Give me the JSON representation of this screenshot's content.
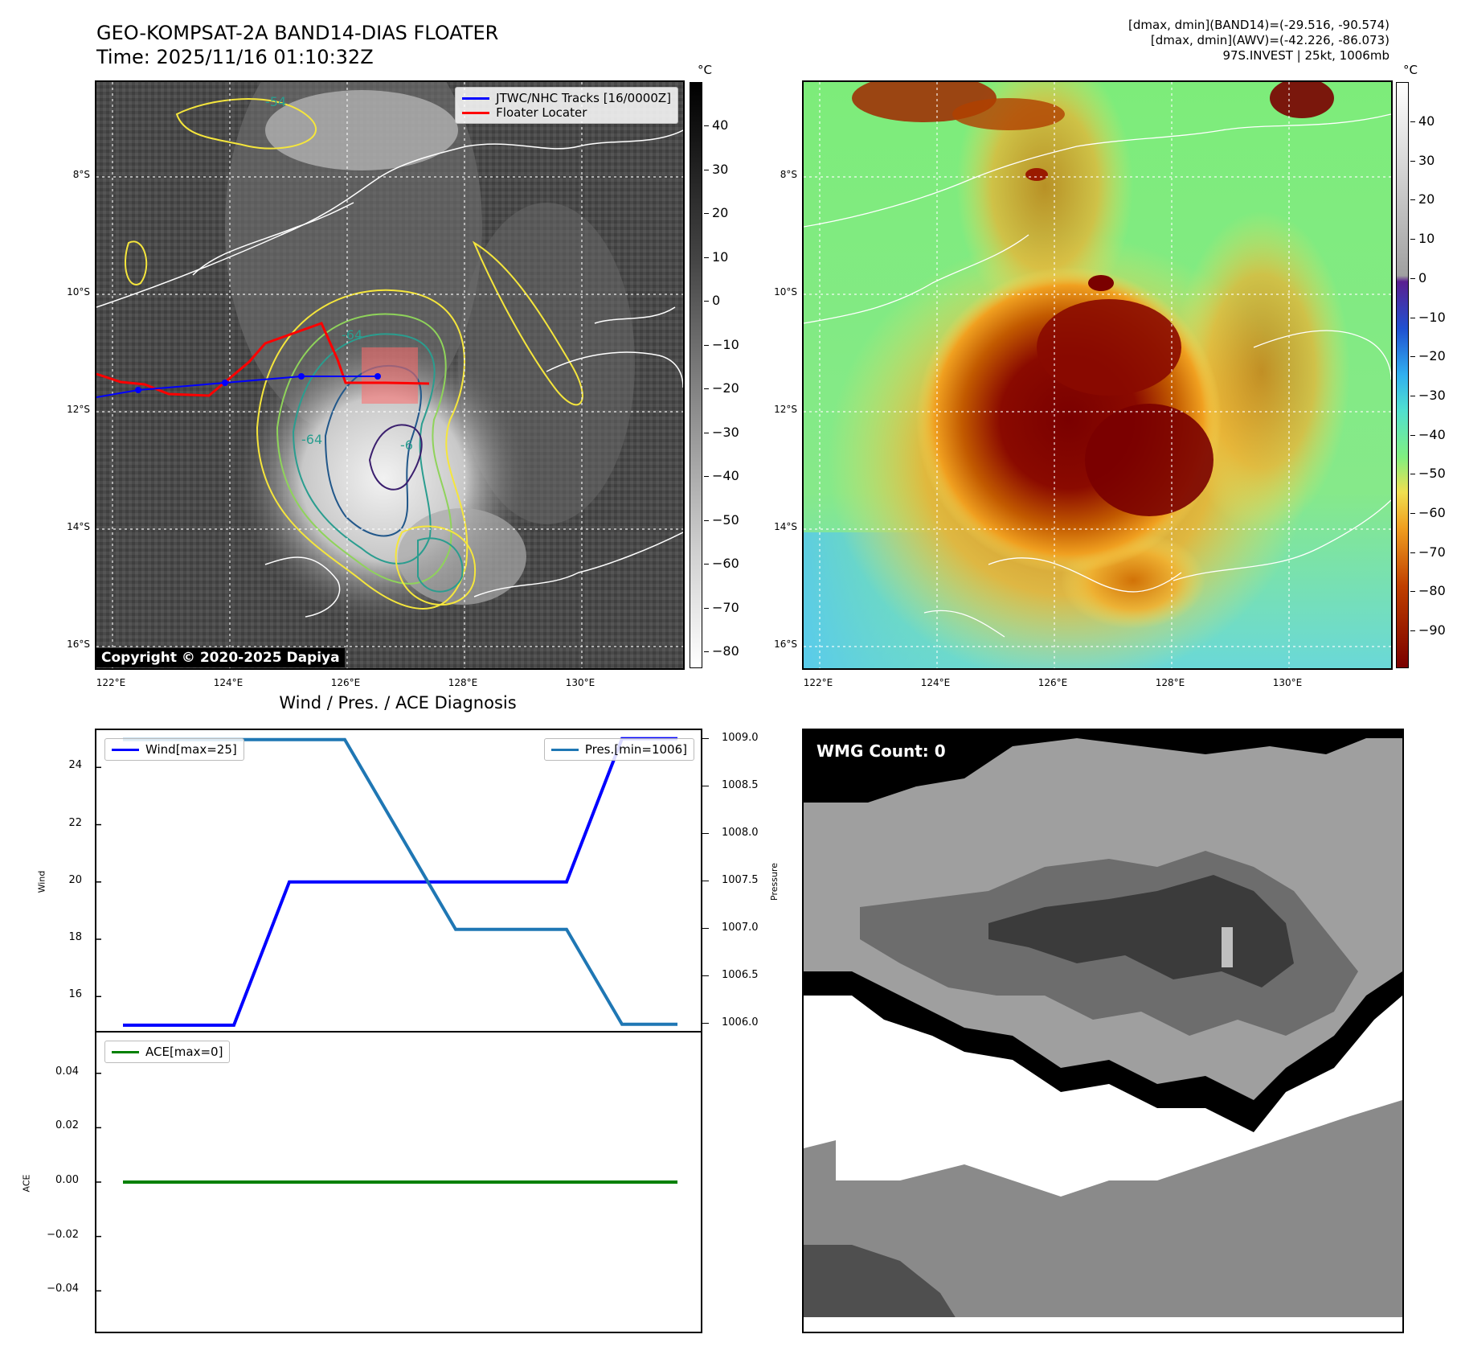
{
  "header": {
    "title_line1": "GEO-KOMPSAT-2A BAND14-DIAS FLOATER",
    "title_line2": "Time: 2025/11/16 01:10:32Z",
    "info_line1": "[dmax, dmin](BAND14)=(-29.516, -90.574)",
    "info_line2": "[dmax, dmin](AWV)=(-42.226, -86.073)",
    "info_line3": "97S.INVEST | 25kt, 1006mb"
  },
  "maps": {
    "lat_labels": [
      "8°S",
      "10°S",
      "12°S",
      "14°S",
      "16°S"
    ],
    "lon_labels": [
      "122°E",
      "124°E",
      "126°E",
      "128°E",
      "130°E"
    ],
    "copyright": "Copyright © 2020-2025 Dapiya",
    "legend_track": "JTWC/NHC Tracks [16/0000Z]",
    "legend_locater": "Floater Locater",
    "track_color": "#0000ff",
    "locater_color": "#ff0000",
    "contour_labels": [
      "-54",
      "-64",
      "-64",
      "-6"
    ]
  },
  "colorbar_left": {
    "unit": "°C",
    "ticks": [
      "40",
      "30",
      "20",
      "10",
      "0",
      "−10",
      "−20",
      "−30",
      "−40",
      "−50",
      "−60",
      "−70",
      "−80"
    ]
  },
  "colorbar_right": {
    "unit": "°C",
    "ticks": [
      "40",
      "30",
      "20",
      "10",
      "0",
      "−10",
      "−20",
      "−30",
      "−40",
      "−50",
      "−60",
      "−70",
      "−80",
      "−90"
    ]
  },
  "diagnosis": {
    "title": "Wind / Pres. / ACE Diagnosis",
    "wind_legend": "Wind[max=25]",
    "pres_legend": "Pres.[min=1006]",
    "ace_legend": "ACE[max=0]",
    "wind_color": "#0000ff",
    "pres_color": "#1f77b4",
    "ace_color": "#008000"
  },
  "chart_data": [
    {
      "type": "line",
      "series": [
        {
          "name": "Wind[max=25]",
          "axis": "left",
          "values": [
            15,
            15,
            15,
            20,
            20,
            20,
            20,
            20,
            20,
            25,
            25
          ]
        },
        {
          "name": "Pres.[min=1006]",
          "axis": "right",
          "values": [
            1009,
            1009,
            1009,
            1009,
            1009,
            1008,
            1007,
            1007,
            1007,
            1006,
            1006
          ]
        }
      ],
      "x": [
        0,
        1,
        2,
        3,
        4,
        5,
        6,
        7,
        8,
        9,
        10
      ],
      "ylabel": "Wind",
      "ylabel_right": "Pressure",
      "yticks": [
        "24",
        "22",
        "20",
        "18",
        "16"
      ],
      "yticks_right": [
        "1009.0",
        "1008.5",
        "1008.0",
        "1007.5",
        "1007.0",
        "1006.5",
        "1006.0"
      ],
      "ylim": [
        14.8,
        25.3
      ],
      "ylim_right": [
        1005.93,
        1009.1
      ]
    },
    {
      "type": "line",
      "series": [
        {
          "name": "ACE[max=0]",
          "values": [
            0,
            0,
            0,
            0,
            0,
            0,
            0,
            0,
            0,
            0,
            0
          ]
        }
      ],
      "x": [
        0,
        1,
        2,
        3,
        4,
        5,
        6,
        7,
        8,
        9,
        10
      ],
      "ylabel": "ACE",
      "yticks": [
        "0.04",
        "0.02",
        "0.00",
        "−0.02",
        "−0.04"
      ],
      "ylim": [
        -0.055,
        0.055
      ]
    }
  ],
  "wmg": {
    "count_label": "WMG Count: 0"
  }
}
